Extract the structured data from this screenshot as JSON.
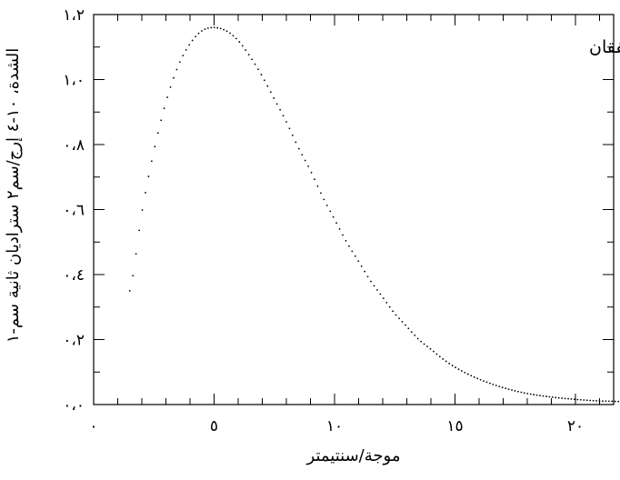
{
  "chart_data": {
    "type": "scatter",
    "title": "",
    "annotation": "النظرية والمشاهدات تتفقان",
    "xlabel": "موجة/سنتيمتر",
    "ylabel": "الشدة، ١٠-٤ إرج/سم٢ ستراديان ثانية سم-١",
    "xlim": [
      0,
      22
    ],
    "ylim": [
      0.0,
      1.2
    ],
    "x_ticks": [
      {
        "value": 0,
        "label": "٠"
      },
      {
        "value": 5,
        "label": "٥"
      },
      {
        "value": 10,
        "label": "١٠"
      },
      {
        "value": 15,
        "label": "١٥"
      },
      {
        "value": 20,
        "label": "٢٠"
      }
    ],
    "y_ticks": [
      {
        "value": 0.0,
        "label": "٠،٠"
      },
      {
        "value": 0.2,
        "label": "٠،٢"
      },
      {
        "value": 0.4,
        "label": "٠،٤"
      },
      {
        "value": 0.6,
        "label": "٠،٦"
      },
      {
        "value": 0.8,
        "label": "٠،٨"
      },
      {
        "value": 1.0,
        "label": "١،٠"
      },
      {
        "value": 1.2,
        "label": "١،٢"
      }
    ],
    "grid": false,
    "series": [
      {
        "color": "#000000",
        "x": [
          1.5,
          2.0,
          2.5,
          3.0,
          3.5,
          4.0,
          4.5,
          5.0,
          5.5,
          6.0,
          6.5,
          7.0,
          7.5,
          8.0,
          8.5,
          9.0,
          9.5,
          10.0,
          10.5,
          11.0,
          11.5,
          12.0,
          12.5,
          13.0,
          13.5,
          14.0,
          14.5,
          15.0,
          15.5,
          16.0,
          16.5,
          17.0,
          17.5,
          18.0,
          18.5,
          19.0,
          19.5,
          20.0,
          20.5,
          21.0,
          21.5,
          22.0
        ],
        "y": [
          0.35,
          0.59,
          0.78,
          0.93,
          1.04,
          1.11,
          1.15,
          1.16,
          1.15,
          1.12,
          1.07,
          1.01,
          0.94,
          0.87,
          0.79,
          0.72,
          0.64,
          0.57,
          0.5,
          0.44,
          0.38,
          0.33,
          0.28,
          0.24,
          0.2,
          0.17,
          0.14,
          0.115,
          0.095,
          0.078,
          0.064,
          0.052,
          0.042,
          0.034,
          0.028,
          0.023,
          0.019,
          0.016,
          0.013,
          0.011,
          0.01,
          0.009
        ]
      }
    ]
  }
}
